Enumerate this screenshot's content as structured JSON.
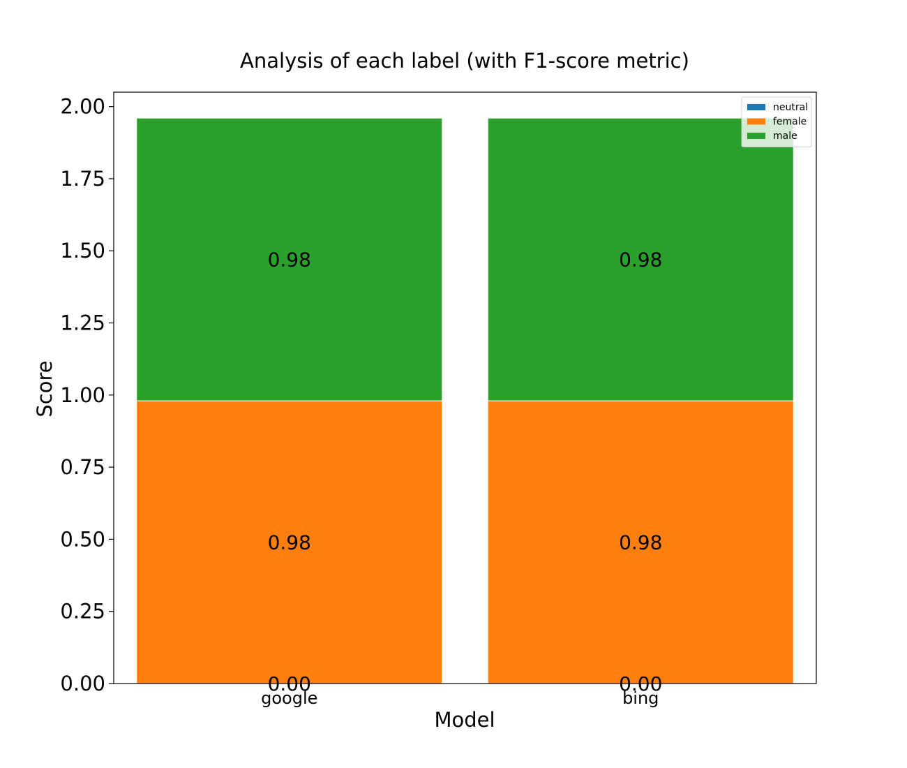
{
  "chart_data": {
    "type": "bar",
    "stacked": true,
    "title": "Analysis of each label (with F1-score metric)",
    "xlabel": "Model",
    "ylabel": "Score",
    "categories": [
      "google",
      "bing"
    ],
    "series": [
      {
        "name": "neutral",
        "values": [
          0.0,
          0.0
        ],
        "labels": [
          "0.00",
          "0.00"
        ],
        "color": "#1f77b4"
      },
      {
        "name": "female",
        "values": [
          0.98,
          0.98
        ],
        "labels": [
          "0.98",
          "0.98"
        ],
        "color": "#ff7f0e"
      },
      {
        "name": "male",
        "values": [
          0.98,
          0.98
        ],
        "labels": [
          "0.98",
          "0.98"
        ],
        "color": "#2ca02c"
      }
    ],
    "ylim": [
      0,
      2.05
    ],
    "yticks": [
      "0.00",
      "0.25",
      "0.50",
      "0.75",
      "1.00",
      "1.25",
      "1.50",
      "1.75",
      "2.00"
    ],
    "grid": false,
    "legend_position": "top-right"
  }
}
